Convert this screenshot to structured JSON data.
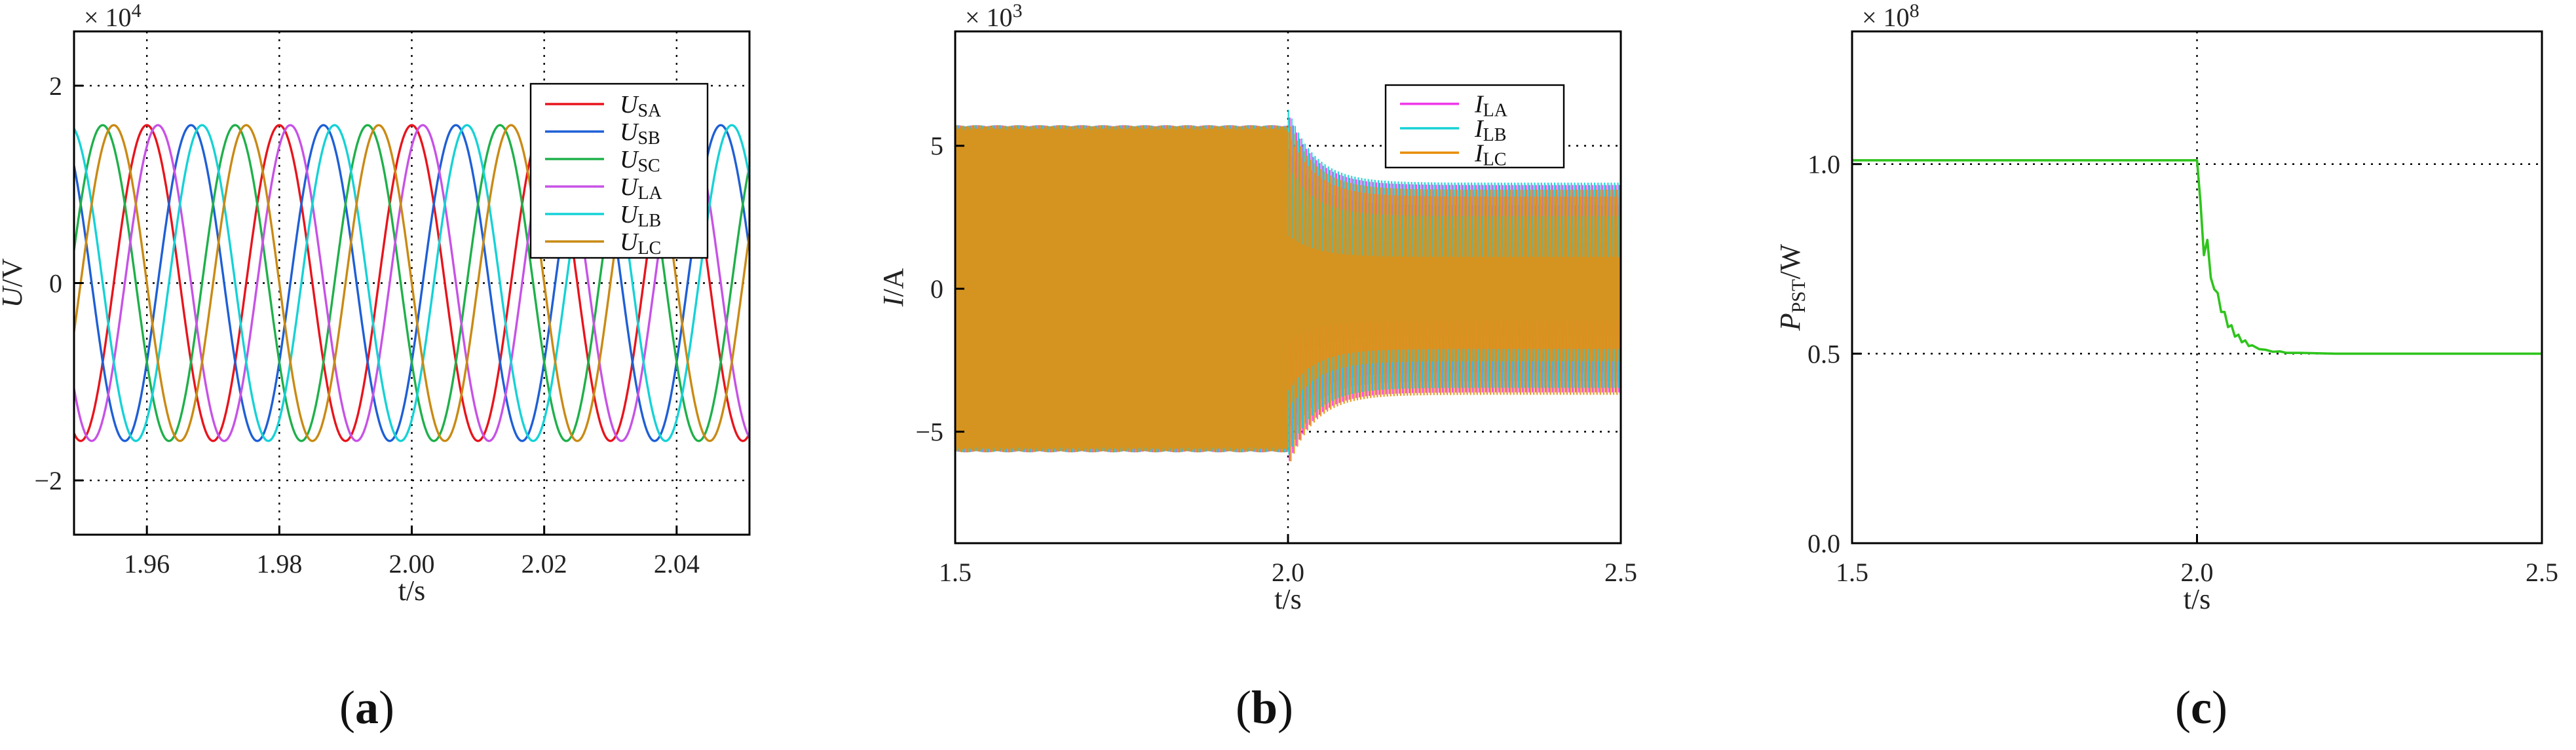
{
  "chart_data": [
    {
      "type": "line",
      "panel_label": "(a)",
      "xlabel": "t/s",
      "ylabel": "U/V",
      "multiplier_base": "× 10",
      "multiplier_exp": "4",
      "x_ticks": [
        "1.96",
        "1.98",
        "2.00",
        "2.02",
        "2.04"
      ],
      "x_tick_values": [
        1.96,
        1.98,
        2.0,
        2.02,
        2.04
      ],
      "y_ticks": [
        "2",
        "0",
        "−2"
      ],
      "y_tick_values": [
        2,
        0,
        -2
      ],
      "xlim": [
        1.949,
        2.051
      ],
      "ylim": [
        -2.55,
        2.55
      ],
      "grid": "dotted",
      "legend_position": "top-right",
      "waveform": {
        "kind": "sinusoid",
        "amplitude": 1.6,
        "frequency_hz": 50
      },
      "series": [
        {
          "name": "U",
          "sub": "SA",
          "color": "#e8141c",
          "phase_deg": 90
        },
        {
          "name": "U",
          "sub": "SB",
          "color": "#1e5fd6",
          "phase_deg": -30
        },
        {
          "name": "U",
          "sub": "SC",
          "color": "#1fb04a",
          "phase_deg": 210
        },
        {
          "name": "U",
          "sub": "LA",
          "color": "#c752e6",
          "phase_deg": 60
        },
        {
          "name": "U",
          "sub": "LB",
          "color": "#15d2d6",
          "phase_deg": -60
        },
        {
          "name": "U",
          "sub": "LC",
          "color": "#c98a14",
          "phase_deg": 180
        }
      ]
    },
    {
      "type": "line",
      "panel_label": "(b)",
      "xlabel": "t/s",
      "ylabel": "I/A",
      "multiplier_base": "× 10",
      "multiplier_exp": "3",
      "x_ticks": [
        "1.5",
        "2.0",
        "2.5"
      ],
      "x_tick_values": [
        1.5,
        2.0,
        2.5
      ],
      "y_ticks": [
        "5",
        "0",
        "−5"
      ],
      "y_tick_values": [
        5,
        0,
        -5
      ],
      "xlim": [
        1.5,
        2.5
      ],
      "ylim": [
        -8.9,
        9.0
      ],
      "grid": "dotted",
      "legend_position": "top-right",
      "event_time": 2.0,
      "amplitude_before": 5.7,
      "amplitude_after": 3.7,
      "transient_peak": 6.3,
      "settling_time_s": 0.12,
      "series": [
        {
          "name": "I",
          "sub": "LA",
          "color": "#ee3be8"
        },
        {
          "name": "I",
          "sub": "LB",
          "color": "#15d2d6"
        },
        {
          "name": "I",
          "sub": "LC",
          "color": "#e88f0c"
        }
      ]
    },
    {
      "type": "line",
      "panel_label": "(c)",
      "xlabel": "t/s",
      "ylabel": "P",
      "ylabel_sub": "PST",
      "ylabel_suffix": "/W",
      "multiplier_base": "× 10",
      "multiplier_exp": "8",
      "x_ticks": [
        "1.5",
        "2.0",
        "2.5"
      ],
      "x_tick_values": [
        1.5,
        2.0,
        2.5
      ],
      "y_ticks": [
        "1.0",
        "0.5",
        "0.0"
      ],
      "y_tick_values": [
        1.0,
        0.5,
        0.0
      ],
      "xlim": [
        1.5,
        2.5
      ],
      "ylim": [
        0.0,
        1.35
      ],
      "grid": "dotted",
      "series": [
        {
          "name": "",
          "color": "#2ec41c",
          "x": [
            1.5,
            2.0,
            2.005,
            2.01,
            2.015,
            2.02,
            2.025,
            2.03,
            2.035,
            2.04,
            2.045,
            2.05,
            2.055,
            2.06,
            2.065,
            2.07,
            2.075,
            2.08,
            2.09,
            2.1,
            2.11,
            2.12,
            2.13,
            2.15,
            2.2,
            2.5
          ],
          "y": [
            1.01,
            1.01,
            0.9,
            0.76,
            0.8,
            0.7,
            0.67,
            0.66,
            0.61,
            0.61,
            0.57,
            0.575,
            0.545,
            0.55,
            0.53,
            0.535,
            0.52,
            0.522,
            0.512,
            0.51,
            0.505,
            0.506,
            0.502,
            0.502,
            0.5,
            0.5
          ]
        }
      ]
    }
  ]
}
